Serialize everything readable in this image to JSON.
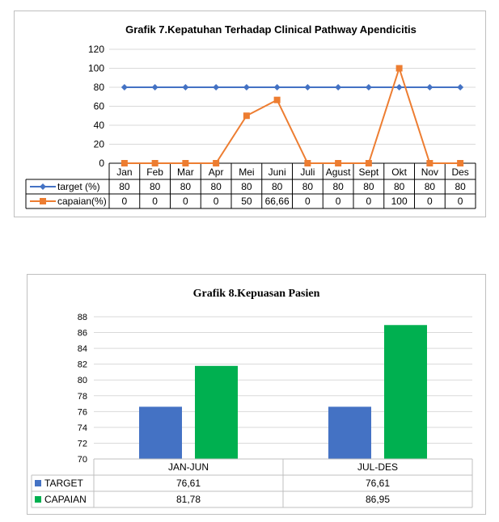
{
  "chart_data": [
    {
      "type": "line",
      "title": "Grafik 7.Kepatuhan Terhadap Clinical Pathway Apendicitis",
      "categories": [
        "Jan",
        "Feb",
        "Mar",
        "Apr",
        "Mei",
        "Juni",
        "Juli",
        "Agust",
        "Sept",
        "Okt",
        "Nov",
        "Des"
      ],
      "ylim": [
        0,
        120
      ],
      "yticks": [
        0,
        20,
        40,
        60,
        80,
        100,
        120
      ],
      "grid": true,
      "legend": "data-table",
      "series": [
        {
          "name": "target (%)",
          "color": "#4472c4",
          "marker": "diamond",
          "values": [
            80,
            80,
            80,
            80,
            80,
            80,
            80,
            80,
            80,
            80,
            80,
            80
          ],
          "labels": [
            "80",
            "80",
            "80",
            "80",
            "80",
            "80",
            "80",
            "80",
            "80",
            "80",
            "80",
            "80"
          ]
        },
        {
          "name": "capaian(%)",
          "color": "#ed7d31",
          "marker": "square",
          "values": [
            0,
            0,
            0,
            0,
            50,
            66.66,
            0,
            0,
            0,
            100,
            0,
            0
          ],
          "labels": [
            "0",
            "0",
            "0",
            "0",
            "50",
            "66,66",
            "0",
            "0",
            "0",
            "100",
            "0",
            "0"
          ]
        }
      ]
    },
    {
      "type": "bar",
      "title": "Grafik 8.Kepuasan Pasien",
      "categories": [
        "JAN-JUN",
        "JUL-DES"
      ],
      "ylim": [
        70,
        88
      ],
      "yticks": [
        70,
        72,
        74,
        76,
        78,
        80,
        82,
        84,
        86,
        88
      ],
      "grid": true,
      "legend": "data-table",
      "series": [
        {
          "name": "TARGET",
          "color": "#4472c4",
          "values": [
            76.61,
            76.61
          ],
          "labels": [
            "76,61",
            "76,61"
          ]
        },
        {
          "name": "CAPAIAN",
          "color": "#00b050",
          "values": [
            81.78,
            86.95
          ],
          "labels": [
            "81,78",
            "86,95"
          ]
        }
      ]
    }
  ]
}
